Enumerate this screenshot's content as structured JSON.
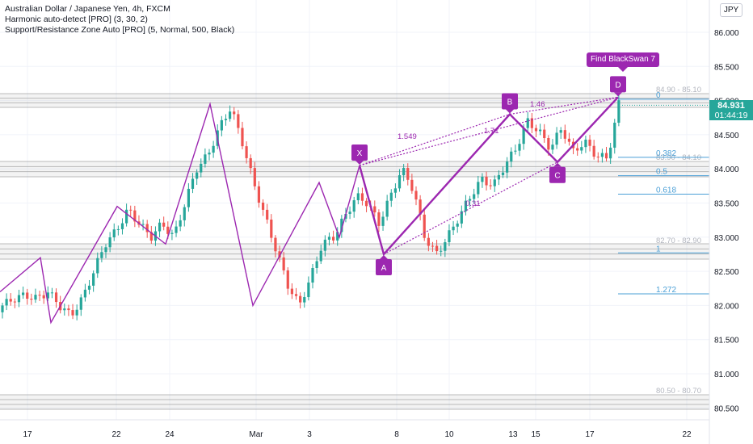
{
  "legend": {
    "line1": "Australian Dollar / Japanese Yen, 4h, FXCM",
    "line2": "Harmonic auto-detect [PRO] (3, 30, 2)",
    "line3": "Support/Resistance Zone Auto [PRO] (5, Normal, 500, Black)"
  },
  "currency": "JPY",
  "last_price": {
    "value": "84.931",
    "countdown": "01:44:19"
  },
  "callout": "Find BlackSwan 7",
  "colors": {
    "up": "#26a69a",
    "down": "#ef5350",
    "pattern": "#9c27b0",
    "fib": "#4a9fd6",
    "zone": "#9e9e9e"
  },
  "chart_data": {
    "type": "candlestick",
    "ylim": [
      80.4,
      86.2
    ],
    "y_ticks": [
      "86.000",
      "85.500",
      "85.000",
      "84.500",
      "84.000",
      "83.500",
      "83.000",
      "82.500",
      "82.000",
      "81.500",
      "81.000",
      "80.500"
    ],
    "x_ticks": [
      "17",
      "22",
      "24",
      "Mar",
      "3",
      "8",
      "10",
      "13",
      "15",
      "17",
      "22"
    ],
    "series_close": [
      82.0,
      82.1,
      82.15,
      82.1,
      82.2,
      82.0,
      81.85,
      82.1,
      82.5,
      82.9,
      83.1,
      83.4,
      83.2,
      83.0,
      83.2,
      83.0,
      83.5,
      84.0,
      84.2,
      84.6,
      84.9,
      84.4,
      83.8,
      83.3,
      82.8,
      82.3,
      82.0,
      82.4,
      82.9,
      83.0,
      83.3,
      83.6,
      83.5,
      83.2,
      83.6,
      84.0,
      83.7,
      83.0,
      82.75,
      83.0,
      83.3,
      83.6,
      83.85,
      83.75,
      84.05,
      84.3,
      84.7,
      84.55,
      84.3,
      84.6,
      84.25,
      84.4,
      84.2,
      84.15,
      84.95
    ],
    "harmonic": {
      "points": [
        {
          "label": "X",
          "price": 84.05
        },
        {
          "label": "A",
          "price": 82.75
        },
        {
          "label": "B",
          "price": 84.8
        },
        {
          "label": "C",
          "price": 84.1
        },
        {
          "label": "D",
          "price": 85.05
        }
      ],
      "ratios": [
        "1.549",
        "1.46",
        "1.71",
        "0.31"
      ]
    },
    "fib_levels": [
      {
        "label": "0",
        "price": 85.02
      },
      {
        "label": "0.382",
        "price": 84.17
      },
      {
        "label": "0.5",
        "price": 83.9
      },
      {
        "label": "0.618",
        "price": 83.63
      },
      {
        "label": "1",
        "price": 82.77
      },
      {
        "label": "1.272",
        "price": 82.17
      }
    ],
    "zones": [
      {
        "label": "84.90 - 85.10",
        "low": 84.9,
        "high": 85.1
      },
      {
        "label": "83.90 - 84.10",
        "low": 83.9,
        "high": 84.1
      },
      {
        "label": "82.70 - 82.90",
        "low": 82.7,
        "high": 82.9
      },
      {
        "label": "80.50 - 80.70",
        "low": 80.5,
        "high": 80.7
      }
    ]
  }
}
